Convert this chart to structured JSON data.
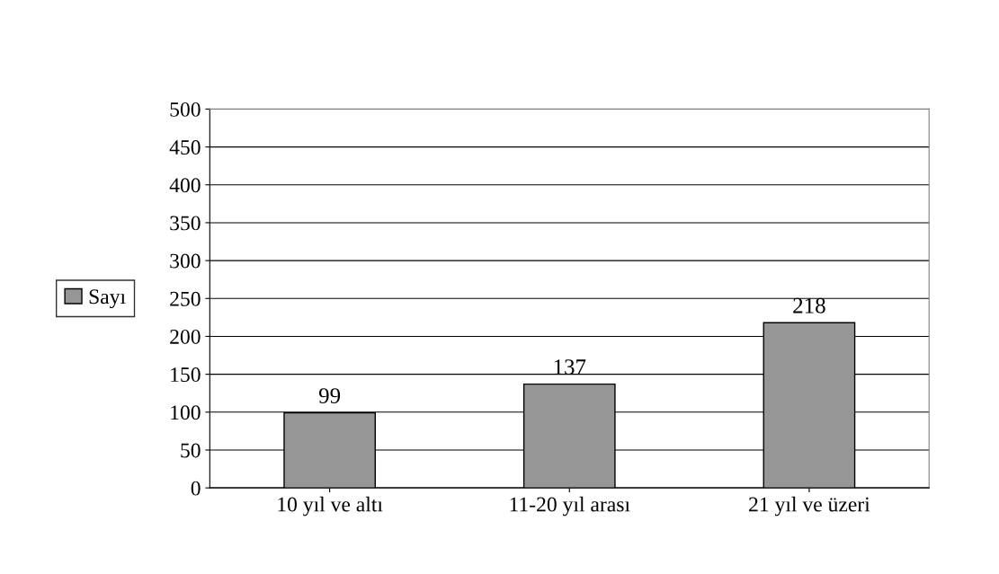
{
  "chart_data": {
    "type": "bar",
    "categories": [
      "10 yıl ve altı",
      "11-20 yıl arası",
      "21 yıl ve üzeri"
    ],
    "series": [
      {
        "name": "Sayı",
        "color": "#969696",
        "values": [
          99,
          137,
          218
        ]
      }
    ],
    "ylim": [
      0,
      500
    ],
    "yticks": [
      0,
      50,
      100,
      150,
      200,
      250,
      300,
      350,
      400,
      450,
      500
    ],
    "grid": "y",
    "legend": "left",
    "data_labels": true
  }
}
